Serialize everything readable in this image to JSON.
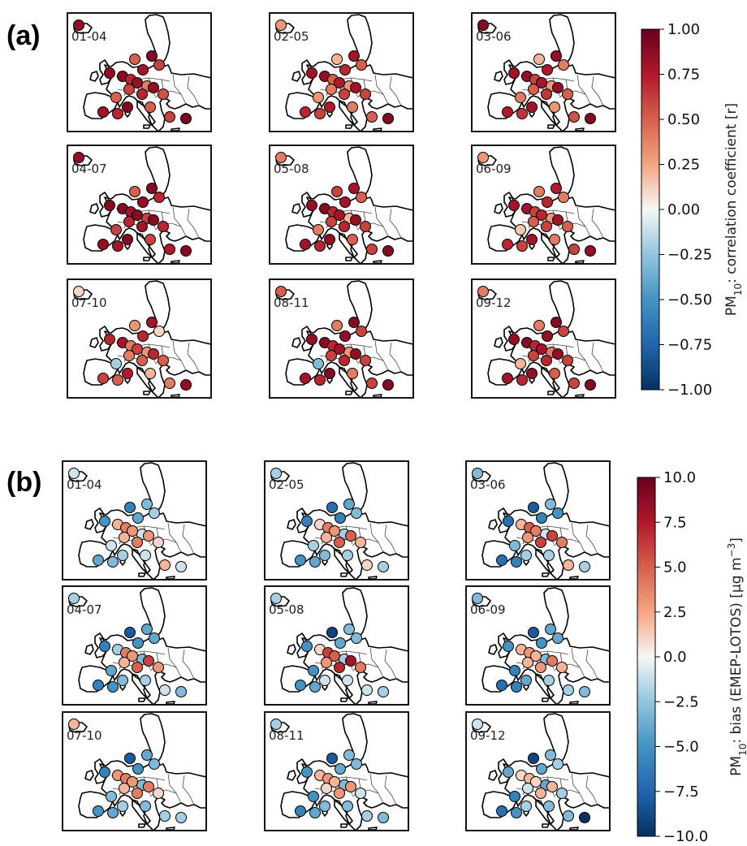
{
  "colors": {
    "diverging": "RdBu_r"
  },
  "panels": [
    {
      "label": "(a)",
      "colorbar": {
        "label_main": "PM",
        "label_sub": "10",
        "label_rest": ": correlation coefficient [r]",
        "min": -1.0,
        "max": 1.0,
        "ticks": [
          "1.00",
          "0.75",
          "0.50",
          "0.25",
          "0.00",
          "−0.25",
          "−0.50",
          "−0.75",
          "−1.00"
        ]
      },
      "maps": [
        {
          "period": "01-04",
          "values": [
            0.85,
            0.5,
            0.8,
            0.9,
            0.6,
            0.85,
            0.9,
            0.7,
            0.4,
            0.85,
            0.6,
            0.7,
            0.5,
            0.85,
            0.55,
            0.9,
            0.7,
            0.5,
            0.8,
            0.6,
            0.95
          ]
        },
        {
          "period": "02-05",
          "values": [
            0.3,
            0.2,
            0.7,
            0.8,
            0.5,
            0.8,
            0.85,
            0.5,
            0.3,
            0.75,
            0.4,
            0.6,
            0.3,
            0.8,
            0.6,
            0.75,
            0.6,
            0.4,
            0.7,
            0.5,
            0.9
          ]
        },
        {
          "period": "03-06",
          "values": [
            0.9,
            0.2,
            0.75,
            0.85,
            0.4,
            0.8,
            0.85,
            0.6,
            0.3,
            0.8,
            0.5,
            0.65,
            0.4,
            0.85,
            0.5,
            0.8,
            0.65,
            0.3,
            0.75,
            0.55,
            0.9
          ]
        },
        {
          "period": "04-07",
          "values": [
            0.85,
            0.5,
            0.85,
            0.9,
            0.7,
            0.9,
            0.9,
            0.8,
            0.6,
            0.9,
            0.7,
            0.8,
            0.6,
            0.9,
            0.7,
            0.9,
            0.8,
            0.6,
            0.85,
            0.75,
            0.9
          ]
        },
        {
          "period": "05-08",
          "values": [
            0.4,
            0.6,
            0.8,
            0.8,
            0.5,
            0.85,
            0.9,
            0.7,
            0.2,
            0.8,
            0.6,
            0.7,
            0.4,
            0.85,
            0.6,
            0.85,
            0.7,
            0.5,
            0.8,
            0.6,
            0.9
          ]
        },
        {
          "period": "06-09",
          "values": [
            0.3,
            0.4,
            0.7,
            0.75,
            0.4,
            0.8,
            0.8,
            0.6,
            0.3,
            0.7,
            0.5,
            0.6,
            0.15,
            0.8,
            0.5,
            0.8,
            0.6,
            0.4,
            0.7,
            0.6,
            0.85
          ]
        },
        {
          "period": "07-10",
          "values": [
            0.1,
            0.3,
            0.7,
            0.8,
            0.1,
            0.7,
            0.8,
            0.4,
            0.3,
            0.6,
            0.4,
            0.5,
            -0.2,
            0.7,
            0.5,
            0.75,
            0.5,
            0.2,
            0.6,
            0.4,
            0.85
          ]
        },
        {
          "period": "08-11",
          "values": [
            0.5,
            0.4,
            0.85,
            0.9,
            0.6,
            0.85,
            0.9,
            0.7,
            0.3,
            0.8,
            0.6,
            0.7,
            -0.3,
            0.85,
            0.6,
            0.9,
            0.7,
            0.4,
            0.8,
            0.6,
            0.9
          ]
        },
        {
          "period": "09-12",
          "values": [
            0.4,
            0.4,
            0.85,
            0.9,
            0.6,
            0.85,
            0.9,
            0.7,
            0.4,
            0.8,
            0.6,
            0.7,
            0.2,
            0.85,
            0.6,
            0.85,
            0.7,
            0.5,
            0.8,
            0.6,
            0.9
          ]
        }
      ]
    },
    {
      "label": "(b)",
      "colorbar": {
        "label_main": "PM",
        "label_sub": "10",
        "label_rest": ": bias (EMEP-LOTOS) [µg m",
        "label_sup": "−3",
        "label_end": "]",
        "min": -10.0,
        "max": 10.0,
        "ticks": [
          "10.0",
          "7.5",
          "5.0",
          "2.5",
          "0.0",
          "−2.5",
          "−5.0",
          "−7.5",
          "−10.0"
        ]
      },
      "maps": [
        {
          "period": "01-04",
          "values": [
            -1,
            -6,
            -4,
            -3,
            -2,
            -5,
            2,
            4,
            -1,
            3,
            2,
            4,
            -1,
            3,
            1,
            -2,
            -3,
            -1,
            -4,
            2,
            -1
          ]
        },
        {
          "period": "02-05",
          "values": [
            -2,
            -7,
            -6,
            -4,
            -3,
            -6,
            1,
            4,
            -2,
            3,
            2,
            5,
            -2,
            5,
            2,
            -3,
            -4,
            -2,
            -5,
            1,
            -2
          ]
        },
        {
          "period": "03-06",
          "values": [
            -3,
            -8,
            -6,
            -3,
            -5,
            -7,
            2,
            5,
            -1,
            4,
            3,
            6,
            -3,
            6,
            4,
            -2,
            -6,
            -2,
            -7,
            2,
            -2
          ]
        },
        {
          "period": "04-07",
          "values": [
            -2,
            -8,
            -5,
            -4,
            -4,
            -6,
            -2,
            4,
            -3,
            3,
            2,
            5,
            -4,
            6,
            3,
            -3,
            -5,
            -2,
            -6,
            -1,
            -3
          ]
        },
        {
          "period": "05-08",
          "values": [
            -2,
            -9,
            -4,
            -3,
            -3,
            -5,
            1,
            6,
            -2,
            5,
            3,
            7,
            -5,
            8,
            4,
            -1,
            -4,
            -1,
            -5,
            -1,
            -2
          ]
        },
        {
          "period": "06-09",
          "values": [
            -3,
            -8,
            -5,
            -4,
            -4,
            -5,
            2,
            3,
            -3,
            2,
            2,
            3,
            -6,
            4,
            2,
            -4,
            -6,
            -2,
            -7,
            -2,
            -3
          ]
        },
        {
          "period": "07-10",
          "values": [
            2,
            -8,
            -5,
            -4,
            -3,
            -6,
            3,
            4,
            -3,
            3,
            2,
            4,
            -3,
            4,
            1,
            -2,
            -4,
            -3,
            -5,
            -2,
            -2
          ]
        },
        {
          "period": "08-11",
          "values": [
            -2,
            -8,
            -4,
            -3,
            -3,
            -5,
            2,
            3,
            -3,
            2,
            1,
            3,
            -5,
            3,
            -1,
            -3,
            -4,
            -3,
            -6,
            -2,
            -3
          ]
        },
        {
          "period": "09-12",
          "values": [
            -1,
            -9,
            -4,
            -3,
            -2,
            -4,
            1,
            2,
            -4,
            1,
            -1,
            2,
            -6,
            2,
            -2,
            -2,
            -5,
            -3,
            -7,
            -3,
            -10
          ]
        }
      ]
    }
  ]
}
